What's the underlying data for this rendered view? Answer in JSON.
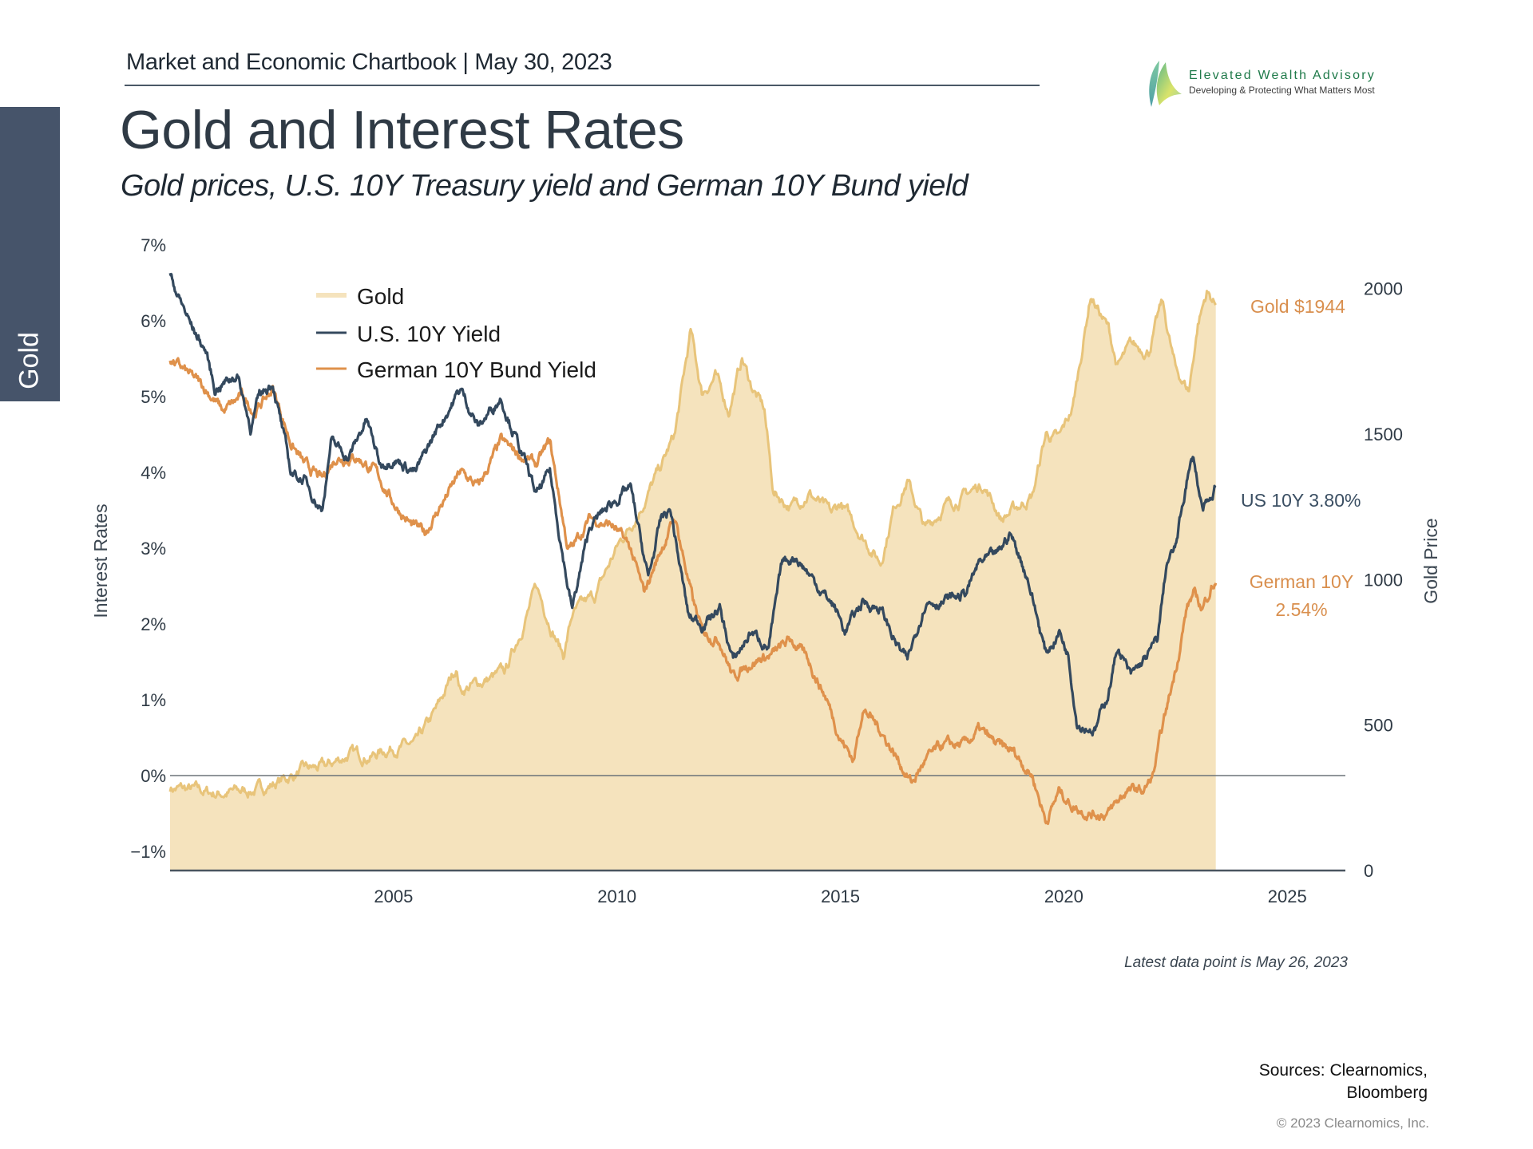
{
  "sidebar": {
    "tab_label": "Gold"
  },
  "header": {
    "chartbook": "Market and Economic Chartbook | May 30, 2023",
    "title": "Gold and Interest Rates",
    "subtitle": "Gold prices, U.S. 10Y Treasury yield and German 10Y Bund yield"
  },
  "logo": {
    "name": "Elevated Wealth Advisory",
    "tagline": "Developing & Protecting What Matters Most"
  },
  "footer": {
    "note": "Latest data point is May 26, 2023",
    "sources_line1": "Sources: Clearnomics,",
    "sources_line2": "Bloomberg",
    "copyright": "© 2023 Clearnomics, Inc."
  },
  "colors": {
    "gold_line": "#e8c47a",
    "gold_fill": "#f5e3bd",
    "us": "#34495e",
    "german": "#df914b",
    "axis": "#4a5560",
    "sidebar": "#46546a"
  },
  "chart_data": {
    "type": "line",
    "title": "Gold and Interest Rates",
    "xlabel": "",
    "ylabel": "Interest Rates",
    "y2label": "Gold Price",
    "xlim": [
      2000.0,
      2026.3
    ],
    "ylim": [
      -1.25,
      7.0
    ],
    "y2lim": [
      0,
      2150
    ],
    "x_ticks": [
      2005,
      2010,
      2015,
      2020,
      2025
    ],
    "y_ticks": [
      {
        "v": 7,
        "label": "7%"
      },
      {
        "v": 6,
        "label": "6%"
      },
      {
        "v": 5,
        "label": "5%"
      },
      {
        "v": 4,
        "label": "4%"
      },
      {
        "v": 3,
        "label": "3%"
      },
      {
        "v": 2,
        "label": "2%"
      },
      {
        "v": 1,
        "label": "1%"
      },
      {
        "v": 0,
        "label": "0%"
      },
      {
        "v": -1,
        "label": "−1%"
      }
    ],
    "y2_ticks": [
      0,
      500,
      1000,
      1500,
      2000
    ],
    "grid": false,
    "legend": {
      "position": "top-left",
      "entries": [
        "Gold",
        "U.S. 10Y Yield",
        "German 10Y Bund Yield"
      ]
    },
    "annotations": {
      "gold": "Gold $1944",
      "us": "US 10Y 3.80%",
      "german_line1": "German 10Y",
      "german_line2": "2.54%"
    },
    "series": [
      {
        "name": "Gold",
        "axis": "right",
        "kind": "area",
        "x": [
          2000.0,
          2000.5,
          2001.0,
          2001.5,
          2002.0,
          2002.5,
          2003.0,
          2003.5,
          2004.0,
          2004.5,
          2005.0,
          2005.5,
          2006.0,
          2006.4,
          2006.5,
          2007.0,
          2007.5,
          2008.0,
          2008.2,
          2008.8,
          2009.0,
          2009.5,
          2010.0,
          2010.5,
          2011.0,
          2011.3,
          2011.65,
          2011.9,
          2012.2,
          2012.5,
          2012.8,
          2013.0,
          2013.3,
          2013.5,
          2013.9,
          2014.3,
          2014.8,
          2015.0,
          2015.5,
          2015.9,
          2016.2,
          2016.5,
          2016.9,
          2017.3,
          2017.8,
          2018.2,
          2018.6,
          2018.9,
          2019.3,
          2019.6,
          2019.9,
          2020.2,
          2020.6,
          2021.0,
          2021.2,
          2021.5,
          2021.9,
          2022.2,
          2022.5,
          2022.8,
          2023.0,
          2023.2,
          2023.4
        ],
        "values": [
          285,
          275,
          265,
          270,
          280,
          310,
          345,
          355,
          400,
          395,
          425,
          430,
          560,
          700,
          620,
          650,
          680,
          890,
          970,
          740,
          880,
          940,
          1110,
          1240,
          1390,
          1500,
          1850,
          1640,
          1700,
          1580,
          1760,
          1670,
          1580,
          1300,
          1250,
          1300,
          1220,
          1260,
          1150,
          1060,
          1250,
          1340,
          1170,
          1250,
          1290,
          1330,
          1210,
          1240,
          1290,
          1500,
          1480,
          1590,
          1980,
          1860,
          1730,
          1800,
          1790,
          1950,
          1720,
          1650,
          1880,
          1990,
          1944
        ]
      },
      {
        "name": "U.S. 10Y Yield",
        "axis": "left",
        "kind": "line",
        "x": [
          2000.0,
          2000.2,
          2000.5,
          2000.8,
          2001.0,
          2001.5,
          2001.8,
          2002.0,
          2002.3,
          2002.7,
          2003.0,
          2003.4,
          2003.6,
          2004.0,
          2004.4,
          2004.7,
          2005.0,
          2005.5,
          2006.0,
          2006.5,
          2006.9,
          2007.4,
          2007.9,
          2008.2,
          2008.5,
          2008.9,
          2009.0,
          2009.4,
          2009.9,
          2010.3,
          2010.7,
          2011.0,
          2011.2,
          2011.6,
          2011.9,
          2012.3,
          2012.6,
          2013.0,
          2013.4,
          2013.7,
          2014.0,
          2014.5,
          2014.9,
          2015.1,
          2015.5,
          2015.9,
          2016.2,
          2016.5,
          2016.9,
          2017.3,
          2017.8,
          2018.1,
          2018.5,
          2018.8,
          2019.2,
          2019.6,
          2019.9,
          2020.1,
          2020.3,
          2020.7,
          2021.0,
          2021.2,
          2021.5,
          2021.9,
          2022.1,
          2022.3,
          2022.5,
          2022.75,
          2022.9,
          2023.1,
          2023.3,
          2023.4
        ],
        "values": [
          6.6,
          6.3,
          5.9,
          5.6,
          5.1,
          5.3,
          4.6,
          5.0,
          5.2,
          4.0,
          3.9,
          3.5,
          4.4,
          4.2,
          4.7,
          4.1,
          4.2,
          4.0,
          4.6,
          5.1,
          4.6,
          5.0,
          4.2,
          3.7,
          4.0,
          2.5,
          2.2,
          3.3,
          3.6,
          3.8,
          2.6,
          3.4,
          3.5,
          2.1,
          2.0,
          2.2,
          1.5,
          1.9,
          1.7,
          2.8,
          2.9,
          2.5,
          2.2,
          1.9,
          2.3,
          2.2,
          1.8,
          1.5,
          2.3,
          2.3,
          2.4,
          2.8,
          2.9,
          3.2,
          2.6,
          1.6,
          1.9,
          1.6,
          0.7,
          0.6,
          1.1,
          1.7,
          1.3,
          1.6,
          1.8,
          2.8,
          3.0,
          3.9,
          4.2,
          3.5,
          3.6,
          3.8
        ]
      },
      {
        "name": "German 10Y Bund Yield",
        "axis": "left",
        "kind": "line",
        "x": [
          2000.0,
          2000.4,
          2000.8,
          2001.2,
          2001.6,
          2001.9,
          2002.3,
          2002.7,
          2003.0,
          2003.4,
          2003.7,
          2004.2,
          2004.6,
          2005.0,
          2005.4,
          2005.7,
          2006.0,
          2006.5,
          2006.9,
          2007.4,
          2007.9,
          2008.2,
          2008.5,
          2008.9,
          2009.0,
          2009.4,
          2009.9,
          2010.3,
          2010.6,
          2011.0,
          2011.3,
          2011.7,
          2011.9,
          2012.3,
          2012.6,
          2013.0,
          2013.5,
          2013.9,
          2014.3,
          2014.7,
          2015.0,
          2015.3,
          2015.5,
          2015.9,
          2016.3,
          2016.6,
          2016.9,
          2017.3,
          2017.8,
          2018.1,
          2018.5,
          2018.9,
          2019.3,
          2019.6,
          2019.9,
          2020.2,
          2020.6,
          2021.0,
          2021.4,
          2021.8,
          2022.0,
          2022.2,
          2022.5,
          2022.75,
          2022.9,
          2023.1,
          2023.3,
          2023.4
        ],
        "values": [
          5.5,
          5.3,
          5.1,
          4.8,
          5.0,
          4.8,
          5.1,
          4.4,
          4.1,
          3.9,
          4.2,
          4.2,
          4.0,
          3.6,
          3.3,
          3.2,
          3.5,
          4.0,
          3.8,
          4.4,
          4.2,
          4.1,
          4.4,
          3.0,
          3.0,
          3.4,
          3.3,
          3.0,
          2.4,
          3.0,
          3.4,
          2.3,
          1.9,
          1.8,
          1.3,
          1.5,
          1.6,
          1.8,
          1.5,
          1.0,
          0.5,
          0.2,
          0.9,
          0.6,
          0.2,
          -0.1,
          0.2,
          0.4,
          0.4,
          0.6,
          0.4,
          0.3,
          0.0,
          -0.6,
          -0.2,
          -0.4,
          -0.5,
          -0.5,
          -0.2,
          -0.2,
          0.0,
          0.6,
          1.4,
          2.2,
          2.4,
          2.2,
          2.5,
          2.54
        ]
      }
    ]
  }
}
